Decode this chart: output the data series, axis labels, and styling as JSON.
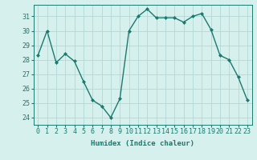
{
  "x": [
    0,
    1,
    2,
    3,
    4,
    5,
    6,
    7,
    8,
    9,
    10,
    11,
    12,
    13,
    14,
    15,
    16,
    17,
    18,
    19,
    20,
    21,
    22,
    23
  ],
  "y": [
    28.3,
    30.0,
    27.8,
    28.4,
    27.9,
    26.5,
    25.2,
    24.8,
    24.0,
    25.3,
    30.0,
    31.0,
    31.5,
    30.9,
    30.9,
    30.9,
    30.6,
    31.0,
    31.2,
    30.1,
    28.3,
    28.0,
    26.8,
    25.2
  ],
  "line_color": "#1a7a6e",
  "marker": "D",
  "marker_size": 2.0,
  "bg_color": "#d6f0ee",
  "grid_color": "#b0d8d4",
  "xlabel": "Humidex (Indice chaleur)",
  "ylim": [
    23.5,
    31.8
  ],
  "yticks": [
    24,
    25,
    26,
    27,
    28,
    29,
    30,
    31
  ],
  "xticks": [
    0,
    1,
    2,
    3,
    4,
    5,
    6,
    7,
    8,
    9,
    10,
    11,
    12,
    13,
    14,
    15,
    16,
    17,
    18,
    19,
    20,
    21,
    22,
    23
  ],
  "xlabel_fontsize": 6.5,
  "tick_fontsize": 6,
  "line_width": 1.0
}
